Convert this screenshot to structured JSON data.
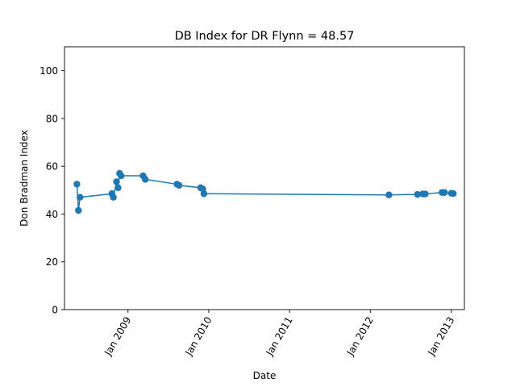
{
  "chart_data": {
    "type": "line",
    "title": "DB Index for DR Flynn = 48.57",
    "xlabel": "Date",
    "ylabel": "Don Bradman Index",
    "xlim": [
      "2008-03-20",
      "2013-03-01"
    ],
    "ylim": [
      0,
      110
    ],
    "yticks": [
      0,
      20,
      40,
      60,
      80,
      100
    ],
    "xticks": [
      {
        "date": "2009-01-01",
        "label": "Jan 2009"
      },
      {
        "date": "2010-01-01",
        "label": "Jan 2010"
      },
      {
        "date": "2011-01-01",
        "label": "Jan 2011"
      },
      {
        "date": "2012-01-01",
        "label": "Jan 2012"
      },
      {
        "date": "2013-01-01",
        "label": "Jan 2013"
      }
    ],
    "grid": false,
    "legend": "none",
    "color": "#1f77b4",
    "series": [
      {
        "points": [
          {
            "x": "2008-05-15",
            "y": 52.5
          },
          {
            "x": "2008-05-22",
            "y": 41.5
          },
          {
            "x": "2008-05-29",
            "y": 47.0
          },
          {
            "x": "2008-10-20",
            "y": 48.5
          },
          {
            "x": "2008-10-27",
            "y": 47.0
          },
          {
            "x": "2008-11-10",
            "y": 53.5
          },
          {
            "x": "2008-11-17",
            "y": 51.0
          },
          {
            "x": "2008-11-24",
            "y": 57.0
          },
          {
            "x": "2008-12-01",
            "y": 56.0
          },
          {
            "x": "2009-03-10",
            "y": 56.0
          },
          {
            "x": "2009-03-20",
            "y": 54.5
          },
          {
            "x": "2009-08-10",
            "y": 52.5
          },
          {
            "x": "2009-08-20",
            "y": 52.0
          },
          {
            "x": "2009-11-25",
            "y": 51.0
          },
          {
            "x": "2009-12-05",
            "y": 50.5
          },
          {
            "x": "2009-12-10",
            "y": 48.5
          },
          {
            "x": "2012-03-25",
            "y": 48.0
          },
          {
            "x": "2012-08-01",
            "y": 48.2
          },
          {
            "x": "2012-08-25",
            "y": 48.4
          },
          {
            "x": "2012-09-05",
            "y": 48.4
          },
          {
            "x": "2012-11-20",
            "y": 49.0
          },
          {
            "x": "2012-12-01",
            "y": 49.0
          },
          {
            "x": "2013-01-01",
            "y": 48.7
          },
          {
            "x": "2013-01-10",
            "y": 48.57
          }
        ]
      }
    ]
  }
}
